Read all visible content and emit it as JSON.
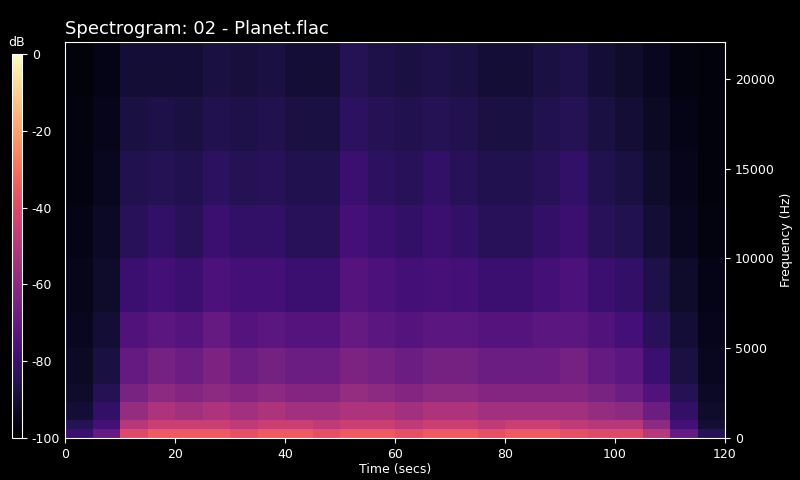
{
  "chart_data": {
    "type": "heatmap",
    "title": "Spectrogram: 02 - Planet.flac",
    "x_label": "Time (secs)",
    "y_label": "Frequency (Hz)",
    "xlim": [
      0,
      120
    ],
    "xticks": [
      0,
      20,
      40,
      60,
      80,
      100,
      120
    ],
    "ylim": [
      0,
      22050
    ],
    "yticks": [
      0,
      5000,
      10000,
      15000,
      20000
    ],
    "x_edges": [
      0,
      5,
      10,
      15,
      20,
      25,
      30,
      35,
      40,
      45,
      50,
      55,
      60,
      65,
      70,
      75,
      80,
      85,
      90,
      95,
      100,
      105,
      110,
      115,
      120
    ],
    "y_edges": [
      0,
      500,
      1000,
      2000,
      3000,
      5000,
      7000,
      10000,
      13000,
      16000,
      19000,
      22050
    ],
    "cells": [
      [
        -80,
        -70,
        -40,
        -35,
        -35,
        -35,
        -38,
        -35,
        -35,
        -38,
        -35,
        -35,
        -38,
        -35,
        -35,
        -38,
        -35,
        -35,
        -38,
        -40,
        -40,
        -50,
        -70,
        -85
      ],
      [
        -85,
        -78,
        -50,
        -45,
        -45,
        -45,
        -48,
        -45,
        -45,
        -48,
        -45,
        -45,
        -48,
        -45,
        -45,
        -48,
        -45,
        -45,
        -48,
        -50,
        -50,
        -60,
        -78,
        -90
      ],
      [
        -90,
        -82,
        -58,
        -52,
        -55,
        -52,
        -55,
        -52,
        -55,
        -55,
        -52,
        -52,
        -55,
        -52,
        -52,
        -55,
        -55,
        -55,
        -55,
        -58,
        -60,
        -68,
        -82,
        -92
      ],
      [
        -92,
        -85,
        -65,
        -60,
        -62,
        -60,
        -62,
        -60,
        -62,
        -62,
        -58,
        -60,
        -62,
        -60,
        -60,
        -62,
        -62,
        -62,
        -62,
        -65,
        -68,
        -75,
        -85,
        -93
      ],
      [
        -93,
        -88,
        -70,
        -66,
        -68,
        -64,
        -68,
        -66,
        -68,
        -68,
        -64,
        -66,
        -68,
        -66,
        -66,
        -68,
        -68,
        -68,
        -66,
        -70,
        -72,
        -80,
        -88,
        -94
      ],
      [
        -94,
        -90,
        -75,
        -72,
        -74,
        -70,
        -74,
        -72,
        -74,
        -74,
        -70,
        -72,
        -74,
        -72,
        -72,
        -74,
        -74,
        -72,
        -72,
        -75,
        -78,
        -84,
        -90,
        -95
      ],
      [
        -95,
        -92,
        -80,
        -78,
        -80,
        -76,
        -78,
        -78,
        -80,
        -80,
        -74,
        -76,
        -78,
        -77,
        -78,
        -80,
        -80,
        -78,
        -76,
        -80,
        -82,
        -87,
        -92,
        -96
      ],
      [
        -96,
        -93,
        -84,
        -82,
        -84,
        -80,
        -82,
        -82,
        -84,
        -84,
        -78,
        -80,
        -82,
        -80,
        -82,
        -84,
        -84,
        -82,
        -80,
        -84,
        -86,
        -90,
        -94,
        -97
      ],
      [
        -97,
        -94,
        -86,
        -85,
        -86,
        -83,
        -85,
        -84,
        -86,
        -86,
        -80,
        -83,
        -84,
        -82,
        -84,
        -86,
        -86,
        -84,
        -82,
        -86,
        -88,
        -92,
        -95,
        -98
      ],
      [
        -97,
        -95,
        -88,
        -87,
        -88,
        -86,
        -87,
        -86,
        -88,
        -88,
        -83,
        -85,
        -86,
        -85,
        -86,
        -88,
        -88,
        -86,
        -85,
        -88,
        -90,
        -93,
        -96,
        -98
      ],
      [
        -98,
        -96,
        -90,
        -90,
        -90,
        -88,
        -89,
        -88,
        -90,
        -90,
        -85,
        -87,
        -88,
        -87,
        -88,
        -90,
        -90,
        -88,
        -87,
        -90,
        -92,
        -94,
        -97,
        -98
      ]
    ],
    "colorbar_label": "dB",
    "colorbar_range": [
      -100,
      0
    ],
    "colorbar_ticks": [
      0,
      -20,
      -40,
      -60,
      -80,
      -100
    ]
  }
}
